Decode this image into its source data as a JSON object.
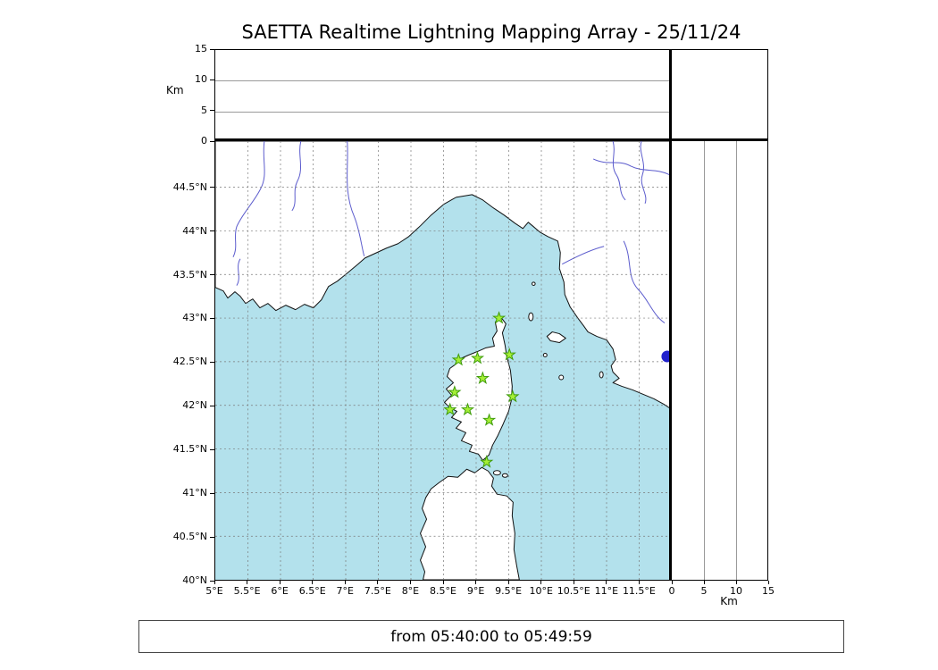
{
  "title": "SAETTA Realtime Lightning Mapping Array - 25/11/24",
  "status_bar": {
    "text": "from 05:40:00 to 05:49:59"
  },
  "top_panel": {
    "ylabel": "Km",
    "ticks": [
      "15",
      "10",
      "5",
      "0"
    ]
  },
  "right_panel": {
    "xlabel": "Km",
    "ticks": [
      "0",
      "5",
      "10",
      "15"
    ]
  },
  "map": {
    "lat_ticks": [
      "44.5°N",
      "44°N",
      "43.5°N",
      "43°N",
      "42.5°N",
      "42°N",
      "41.5°N",
      "41°N",
      "40.5°N",
      "40°N"
    ],
    "lon_ticks": [
      "5°E",
      "5.5°E",
      "6°E",
      "6.5°E",
      "7°E",
      "7.5°E",
      "8°E",
      "8.5°E",
      "9°E",
      "9.5°E",
      "10°E",
      "10.5°E",
      "11°E",
      "11.5°E"
    ],
    "sea_color": "#b3e1ec",
    "land_color": "#ffffff",
    "station_color": "#a5ef35",
    "station_edge_color": "#3e9b0a",
    "marker_color": "#2121cc",
    "stations": [
      {
        "lon": 9.35,
        "lat": 43.0
      },
      {
        "lon": 8.73,
        "lat": 42.52
      },
      {
        "lon": 9.02,
        "lat": 42.54
      },
      {
        "lon": 9.51,
        "lat": 42.58
      },
      {
        "lon": 9.1,
        "lat": 42.31
      },
      {
        "lon": 8.67,
        "lat": 42.15
      },
      {
        "lon": 9.56,
        "lat": 42.1
      },
      {
        "lon": 8.6,
        "lat": 41.95
      },
      {
        "lon": 8.87,
        "lat": 41.95
      },
      {
        "lon": 9.2,
        "lat": 41.83
      },
      {
        "lon": 9.16,
        "lat": 41.35
      }
    ],
    "edge_marker": {
      "lon": 11.93,
      "lat": 42.56
    }
  }
}
